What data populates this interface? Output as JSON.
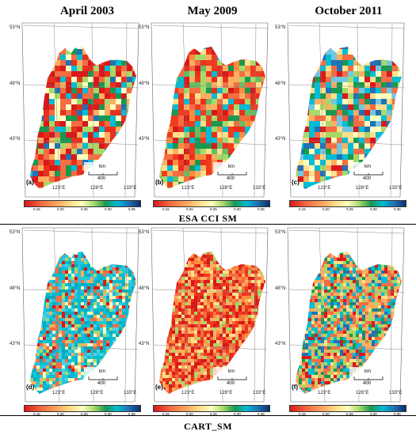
{
  "headers": [
    "April 2003",
    "May 2009",
    "October 2011"
  ],
  "row_titles": [
    "ESA CCI SM",
    "CART_SM"
  ],
  "lat_labels": [
    "53°N",
    "48°N",
    "43°N"
  ],
  "lon_labels": [
    "123°E",
    "128°E",
    "133°E"
  ],
  "panel_labels": [
    "(a)",
    "(b)",
    "(c)",
    "(d)",
    "(e)",
    "(f)"
  ],
  "scalebar": {
    "unit": "km",
    "length": "400"
  },
  "colorbar": {
    "ticks": [
      "0.15",
      "0.20",
      "0.25",
      "0.30",
      "0.35"
    ]
  }
}
